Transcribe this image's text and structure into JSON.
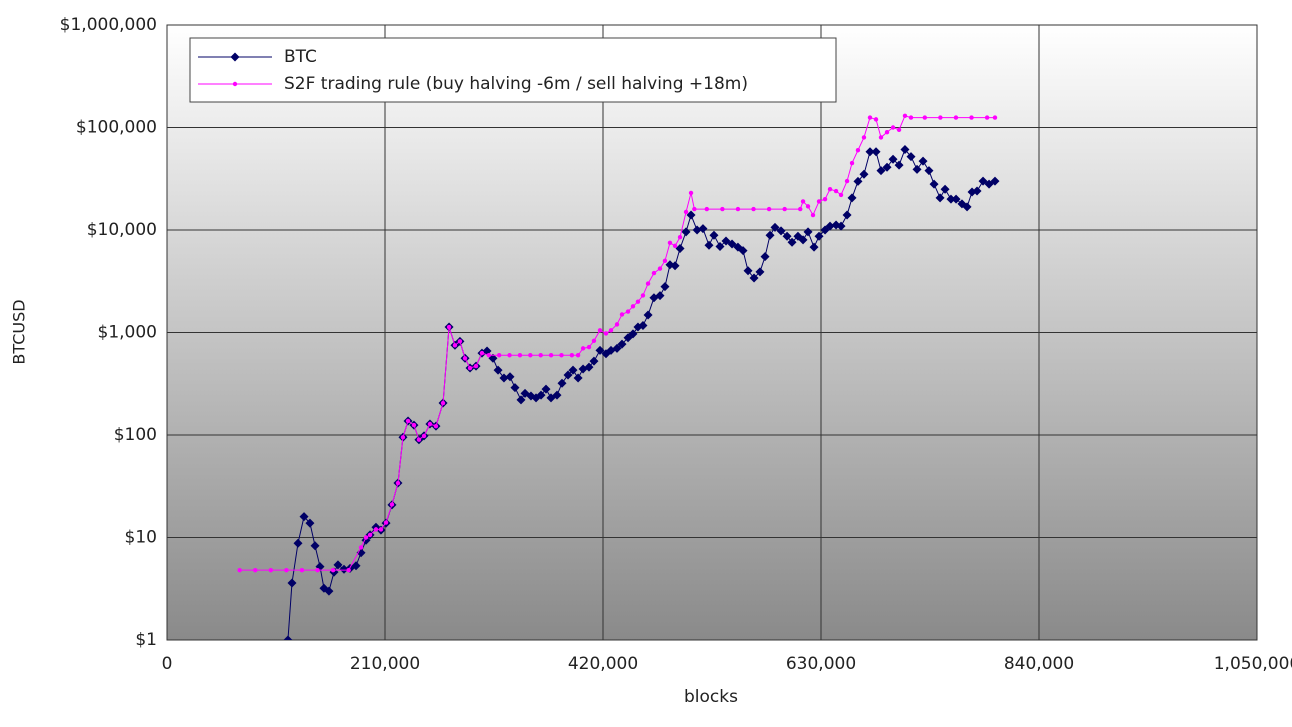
{
  "chart_data": {
    "type": "line",
    "x_label": "blocks",
    "y_label": "BTCUSD",
    "xlim": [
      0,
      1050000
    ],
    "xticks": [
      0,
      {
        "value": 210000,
        "label": "210,000"
      },
      {
        "value": 420000,
        "label": "420,000"
      },
      {
        "value": 630000,
        "label": "630,000"
      },
      {
        "value": 840000,
        "label": "840,000"
      },
      {
        "value": 1050000,
        "label": "1,050,000"
      }
    ],
    "ylim": [
      1,
      1000000
    ],
    "log_y": true,
    "yticks": [
      {
        "value": 1,
        "label": "$1"
      },
      {
        "value": 10,
        "label": "$10"
      },
      {
        "value": 100,
        "label": "$100"
      },
      {
        "value": 1000,
        "label": "$1,000"
      },
      {
        "value": 10000,
        "label": "$10,000"
      },
      {
        "value": 100000,
        "label": "$100,000"
      },
      {
        "value": 1000000,
        "label": "$1,000,000"
      }
    ],
    "grid": true,
    "legend": "top-left",
    "series": [
      {
        "name": "BTC",
        "color": "#000066",
        "marker": "diamond",
        "x": [
          116500,
          120400,
          126200,
          132000,
          137700,
          142600,
          147400,
          151200,
          156000,
          160900,
          164700,
          170500,
          176300,
          182100,
          186900,
          191700,
          195600,
          201300,
          206100,
          211000,
          216700,
          222500,
          227300,
          232200,
          237900,
          242700,
          247600,
          253300,
          259100,
          265900,
          271700,
          277400,
          282200,
          287100,
          291900,
          297700,
          303400,
          308300,
          314000,
          318900,
          324600,
          330400,
          335200,
          341000,
          344900,
          350600,
          355500,
          360300,
          365100,
          369900,
          375700,
          380500,
          386300,
          391100,
          396000,
          400800,
          406500,
          411300,
          417100,
          422900,
          427700,
          433500,
          438300,
          444100,
          448900,
          453700,
          458500,
          463400,
          469100,
          474900,
          479700,
          484500,
          489400,
          494200,
          500000,
          504800,
          510600,
          516300,
          522100,
          526900,
          532700,
          538500,
          544300,
          550000,
          554900,
          559700,
          565500,
          571200,
          576100,
          580900,
          585700,
          591500,
          597300,
          602100,
          607800,
          612700,
          617500,
          623300,
          628100,
          633900,
          638700,
          644500,
          649300,
          655100,
          659900,
          665600,
          671400,
          677200,
          683000,
          687800,
          693600,
          699400,
          705200,
          710900,
          716700,
          722500,
          728300,
          734000,
          738900,
          744700,
          749500,
          755200,
          760100,
          765800,
          770700,
          775500,
          780300,
          786100,
          791900,
          797600
        ],
        "values": [
          1,
          3.6,
          8.8,
          16,
          13.8,
          8.3,
          5.2,
          3.2,
          3.0,
          4.6,
          5.4,
          4.9,
          5.0,
          5.3,
          7.1,
          9.4,
          10.6,
          12.6,
          11.8,
          13.8,
          20.8,
          34,
          95,
          137,
          125,
          90,
          98,
          128,
          122,
          205,
          1130,
          750,
          820,
          560,
          450,
          470,
          630,
          660,
          560,
          430,
          360,
          370,
          290,
          220,
          255,
          240,
          230,
          245,
          280,
          230,
          245,
          320,
          385,
          430,
          360,
          440,
          460,
          525,
          670,
          620,
          670,
          700,
          770,
          890,
          970,
          1130,
          1170,
          1480,
          2180,
          2290,
          2800,
          4580,
          4480,
          6600,
          9600,
          14000,
          10000,
          10300,
          7100,
          8900,
          6900,
          7800,
          7300,
          6800,
          6300,
          4000,
          3400,
          3900,
          5500,
          8900,
          10600,
          9800,
          8700,
          7600,
          8700,
          8000,
          9600,
          6800,
          8700,
          10000,
          10900,
          11200,
          10900,
          14000,
          20600,
          29800,
          35000,
          58000,
          58000,
          38000,
          41000,
          49000,
          43000,
          61000,
          52000,
          39000,
          47000,
          38000,
          28000,
          20600,
          25000,
          20000,
          20000,
          18000,
          16800,
          23500,
          24000,
          30000,
          28000,
          30000
        ]
      },
      {
        "name": "S2F trading rule (buy halving -6m / sell halving +18m)",
        "color": "#ff00ff",
        "marker": "dot",
        "x": [
          70000,
          85000,
          100000,
          115000,
          130000,
          145000,
          160000,
          175000,
          186900,
          191700,
          195600,
          201300,
          206100,
          211000,
          216700,
          222500,
          227300,
          232200,
          237900,
          242700,
          247600,
          253300,
          259100,
          265900,
          271700,
          277400,
          282200,
          287100,
          291900,
          297700,
          303400,
          310000,
          320000,
          330000,
          340000,
          350000,
          360000,
          370000,
          380000,
          390000,
          396000,
          400800,
          406500,
          411300,
          417100,
          422900,
          427700,
          433500,
          438300,
          444100,
          448900,
          453700,
          458500,
          463400,
          469100,
          474900,
          479700,
          484500,
          489400,
          494200,
          500000,
          504800,
          508000,
          520000,
          535000,
          550000,
          565000,
          580000,
          595000,
          610000,
          612700,
          617500,
          622300,
          628100,
          633900,
          638700,
          644500,
          649300,
          655100,
          659900,
          665600,
          671400,
          677200,
          683000,
          687800,
          693600,
          699400,
          705200,
          710900,
          716700,
          730000,
          745000,
          760000,
          775000,
          790000,
          797600
        ],
        "values": [
          4.8,
          4.8,
          4.8,
          4.8,
          4.8,
          4.8,
          4.8,
          4.8,
          8,
          10,
          10.6,
          12,
          12,
          14,
          21,
          34,
          95,
          137,
          125,
          90,
          98,
          128,
          122,
          205,
          1130,
          750,
          820,
          560,
          450,
          470,
          630,
          600,
          600,
          600,
          600,
          600,
          600,
          600,
          600,
          600,
          600,
          700,
          720,
          830,
          1050,
          980,
          1050,
          1200,
          1500,
          1600,
          1800,
          2000,
          2300,
          3000,
          3800,
          4200,
          5000,
          7500,
          7000,
          8500,
          15000,
          23000,
          16000,
          16000,
          16000,
          16000,
          16000,
          16000,
          16000,
          16000,
          19000,
          17000,
          14000,
          19000,
          20000,
          25000,
          24000,
          22000,
          30000,
          45000,
          60000,
          80000,
          125000,
          120000,
          80000,
          90000,
          100000,
          95000,
          130000,
          125000,
          125000,
          125000,
          125000,
          125000,
          125000,
          125000
        ]
      }
    ]
  }
}
